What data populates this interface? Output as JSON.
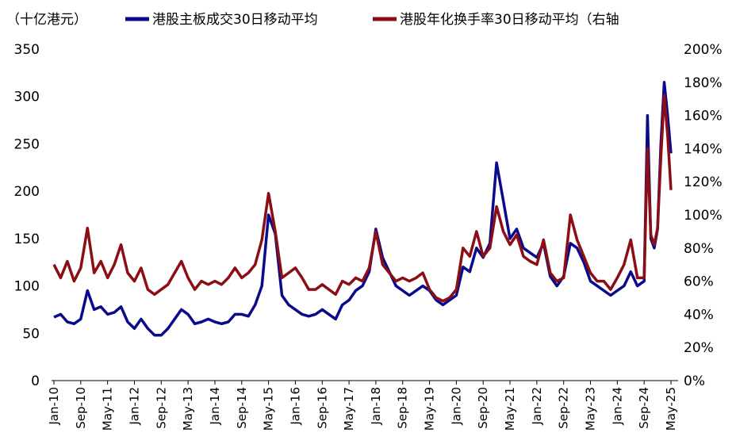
{
  "chart_data": {
    "type": "line",
    "unit_label": "（十亿港元）",
    "y_left": {
      "min": 0,
      "max": 350,
      "ticks": [
        "0",
        "50",
        "100",
        "150",
        "200",
        "250",
        "300",
        "350"
      ]
    },
    "y_right": {
      "min": 0,
      "max": 200,
      "ticks": [
        "0%",
        "20%",
        "40%",
        "60%",
        "80%",
        "100%",
        "120%",
        "140%",
        "160%",
        "180%",
        "200%"
      ]
    },
    "x_ticks": [
      "Jan-10",
      "Sep-10",
      "May-11",
      "Jan-12",
      "Sep-12",
      "May-13",
      "Jan-14",
      "Sep-14",
      "May-15",
      "Jan-16",
      "Sep-16",
      "May-17",
      "Jan-18",
      "Sep-18",
      "May-19",
      "Jan-20",
      "Sep-20",
      "May-21",
      "Jan-22",
      "Sep-22",
      "May-23",
      "Jan-24",
      "Sep-24",
      "May-25"
    ],
    "x_range": [
      "2010-01",
      "2025-05"
    ],
    "series": [
      {
        "name": "港股主板成交30日移动平均",
        "axis": "left",
        "color": "#0a0a8c",
        "points": [
          [
            "2010-01",
            67
          ],
          [
            "2010-03",
            70
          ],
          [
            "2010-05",
            62
          ],
          [
            "2010-07",
            60
          ],
          [
            "2010-09",
            65
          ],
          [
            "2010-11",
            95
          ],
          [
            "2011-01",
            75
          ],
          [
            "2011-03",
            78
          ],
          [
            "2011-05",
            70
          ],
          [
            "2011-07",
            72
          ],
          [
            "2011-09",
            78
          ],
          [
            "2011-11",
            62
          ],
          [
            "2012-01",
            55
          ],
          [
            "2012-03",
            65
          ],
          [
            "2012-05",
            55
          ],
          [
            "2012-07",
            48
          ],
          [
            "2012-09",
            48
          ],
          [
            "2012-11",
            55
          ],
          [
            "2013-01",
            65
          ],
          [
            "2013-03",
            75
          ],
          [
            "2013-05",
            70
          ],
          [
            "2013-07",
            60
          ],
          [
            "2013-09",
            62
          ],
          [
            "2013-11",
            65
          ],
          [
            "2014-01",
            62
          ],
          [
            "2014-03",
            60
          ],
          [
            "2014-05",
            62
          ],
          [
            "2014-07",
            70
          ],
          [
            "2014-09",
            70
          ],
          [
            "2014-11",
            68
          ],
          [
            "2015-01",
            80
          ],
          [
            "2015-03",
            100
          ],
          [
            "2015-05",
            175
          ],
          [
            "2015-07",
            155
          ],
          [
            "2015-09",
            90
          ],
          [
            "2015-11",
            80
          ],
          [
            "2016-01",
            75
          ],
          [
            "2016-03",
            70
          ],
          [
            "2016-05",
            68
          ],
          [
            "2016-07",
            70
          ],
          [
            "2016-09",
            75
          ],
          [
            "2016-11",
            70
          ],
          [
            "2017-01",
            65
          ],
          [
            "2017-03",
            80
          ],
          [
            "2017-05",
            85
          ],
          [
            "2017-07",
            95
          ],
          [
            "2017-09",
            100
          ],
          [
            "2017-11",
            115
          ],
          [
            "2018-01",
            160
          ],
          [
            "2018-03",
            130
          ],
          [
            "2018-05",
            115
          ],
          [
            "2018-07",
            100
          ],
          [
            "2018-09",
            95
          ],
          [
            "2018-11",
            90
          ],
          [
            "2019-01",
            95
          ],
          [
            "2019-03",
            100
          ],
          [
            "2019-05",
            95
          ],
          [
            "2019-07",
            85
          ],
          [
            "2019-09",
            80
          ],
          [
            "2019-11",
            85
          ],
          [
            "2020-01",
            90
          ],
          [
            "2020-03",
            120
          ],
          [
            "2020-05",
            115
          ],
          [
            "2020-07",
            140
          ],
          [
            "2020-09",
            130
          ],
          [
            "2020-11",
            145
          ],
          [
            "2021-01",
            230
          ],
          [
            "2021-03",
            190
          ],
          [
            "2021-05",
            150
          ],
          [
            "2021-07",
            160
          ],
          [
            "2021-09",
            140
          ],
          [
            "2021-11",
            135
          ],
          [
            "2022-01",
            130
          ],
          [
            "2022-03",
            145
          ],
          [
            "2022-05",
            110
          ],
          [
            "2022-07",
            100
          ],
          [
            "2022-09",
            110
          ],
          [
            "2022-11",
            145
          ],
          [
            "2023-01",
            140
          ],
          [
            "2023-03",
            125
          ],
          [
            "2023-05",
            105
          ],
          [
            "2023-07",
            100
          ],
          [
            "2023-09",
            95
          ],
          [
            "2023-11",
            90
          ],
          [
            "2024-01",
            95
          ],
          [
            "2024-03",
            100
          ],
          [
            "2024-05",
            115
          ],
          [
            "2024-07",
            100
          ],
          [
            "2024-09",
            105
          ],
          [
            "2024-10",
            280
          ],
          [
            "2024-11",
            150
          ],
          [
            "2024-12",
            140
          ],
          [
            "2025-01",
            160
          ],
          [
            "2025-02",
            250
          ],
          [
            "2025-03",
            315
          ],
          [
            "2025-04",
            280
          ],
          [
            "2025-05",
            240
          ]
        ]
      },
      {
        "name": "港股年化换手率30日移动平均（右轴",
        "axis": "right",
        "color": "#8b0e14",
        "points": [
          [
            "2010-01",
            70
          ],
          [
            "2010-03",
            62
          ],
          [
            "2010-05",
            72
          ],
          [
            "2010-07",
            60
          ],
          [
            "2010-09",
            68
          ],
          [
            "2010-11",
            92
          ],
          [
            "2011-01",
            65
          ],
          [
            "2011-03",
            72
          ],
          [
            "2011-05",
            62
          ],
          [
            "2011-07",
            70
          ],
          [
            "2011-09",
            82
          ],
          [
            "2011-11",
            65
          ],
          [
            "2012-01",
            60
          ],
          [
            "2012-03",
            68
          ],
          [
            "2012-05",
            55
          ],
          [
            "2012-07",
            52
          ],
          [
            "2012-09",
            55
          ],
          [
            "2012-11",
            58
          ],
          [
            "2013-01",
            65
          ],
          [
            "2013-03",
            72
          ],
          [
            "2013-05",
            62
          ],
          [
            "2013-07",
            55
          ],
          [
            "2013-09",
            60
          ],
          [
            "2013-11",
            58
          ],
          [
            "2014-01",
            60
          ],
          [
            "2014-03",
            58
          ],
          [
            "2014-05",
            62
          ],
          [
            "2014-07",
            68
          ],
          [
            "2014-09",
            62
          ],
          [
            "2014-11",
            65
          ],
          [
            "2015-01",
            70
          ],
          [
            "2015-03",
            85
          ],
          [
            "2015-05",
            113
          ],
          [
            "2015-07",
            90
          ],
          [
            "2015-09",
            62
          ],
          [
            "2015-11",
            65
          ],
          [
            "2016-01",
            68
          ],
          [
            "2016-03",
            62
          ],
          [
            "2016-05",
            55
          ],
          [
            "2016-07",
            55
          ],
          [
            "2016-09",
            58
          ],
          [
            "2016-11",
            55
          ],
          [
            "2017-01",
            52
          ],
          [
            "2017-03",
            60
          ],
          [
            "2017-05",
            58
          ],
          [
            "2017-07",
            62
          ],
          [
            "2017-09",
            60
          ],
          [
            "2017-11",
            68
          ],
          [
            "2018-01",
            90
          ],
          [
            "2018-03",
            70
          ],
          [
            "2018-05",
            65
          ],
          [
            "2018-07",
            60
          ],
          [
            "2018-09",
            62
          ],
          [
            "2018-11",
            60
          ],
          [
            "2019-01",
            62
          ],
          [
            "2019-03",
            65
          ],
          [
            "2019-05",
            55
          ],
          [
            "2019-07",
            50
          ],
          [
            "2019-09",
            48
          ],
          [
            "2019-11",
            50
          ],
          [
            "2020-01",
            55
          ],
          [
            "2020-03",
            80
          ],
          [
            "2020-05",
            75
          ],
          [
            "2020-07",
            90
          ],
          [
            "2020-09",
            75
          ],
          [
            "2020-11",
            80
          ],
          [
            "2021-01",
            105
          ],
          [
            "2021-03",
            90
          ],
          [
            "2021-05",
            82
          ],
          [
            "2021-07",
            88
          ],
          [
            "2021-09",
            75
          ],
          [
            "2021-11",
            72
          ],
          [
            "2022-01",
            70
          ],
          [
            "2022-03",
            85
          ],
          [
            "2022-05",
            65
          ],
          [
            "2022-07",
            60
          ],
          [
            "2022-09",
            62
          ],
          [
            "2022-11",
            100
          ],
          [
            "2023-01",
            85
          ],
          [
            "2023-03",
            75
          ],
          [
            "2023-05",
            65
          ],
          [
            "2023-07",
            60
          ],
          [
            "2023-09",
            60
          ],
          [
            "2023-11",
            55
          ],
          [
            "2024-01",
            62
          ],
          [
            "2024-03",
            70
          ],
          [
            "2024-05",
            85
          ],
          [
            "2024-07",
            62
          ],
          [
            "2024-09",
            62
          ],
          [
            "2024-10",
            140
          ],
          [
            "2024-11",
            88
          ],
          [
            "2024-12",
            82
          ],
          [
            "2025-01",
            92
          ],
          [
            "2025-02",
            135
          ],
          [
            "2025-03",
            172
          ],
          [
            "2025-04",
            148
          ],
          [
            "2025-05",
            115
          ]
        ]
      }
    ],
    "grid": false,
    "legend_position": "top"
  }
}
